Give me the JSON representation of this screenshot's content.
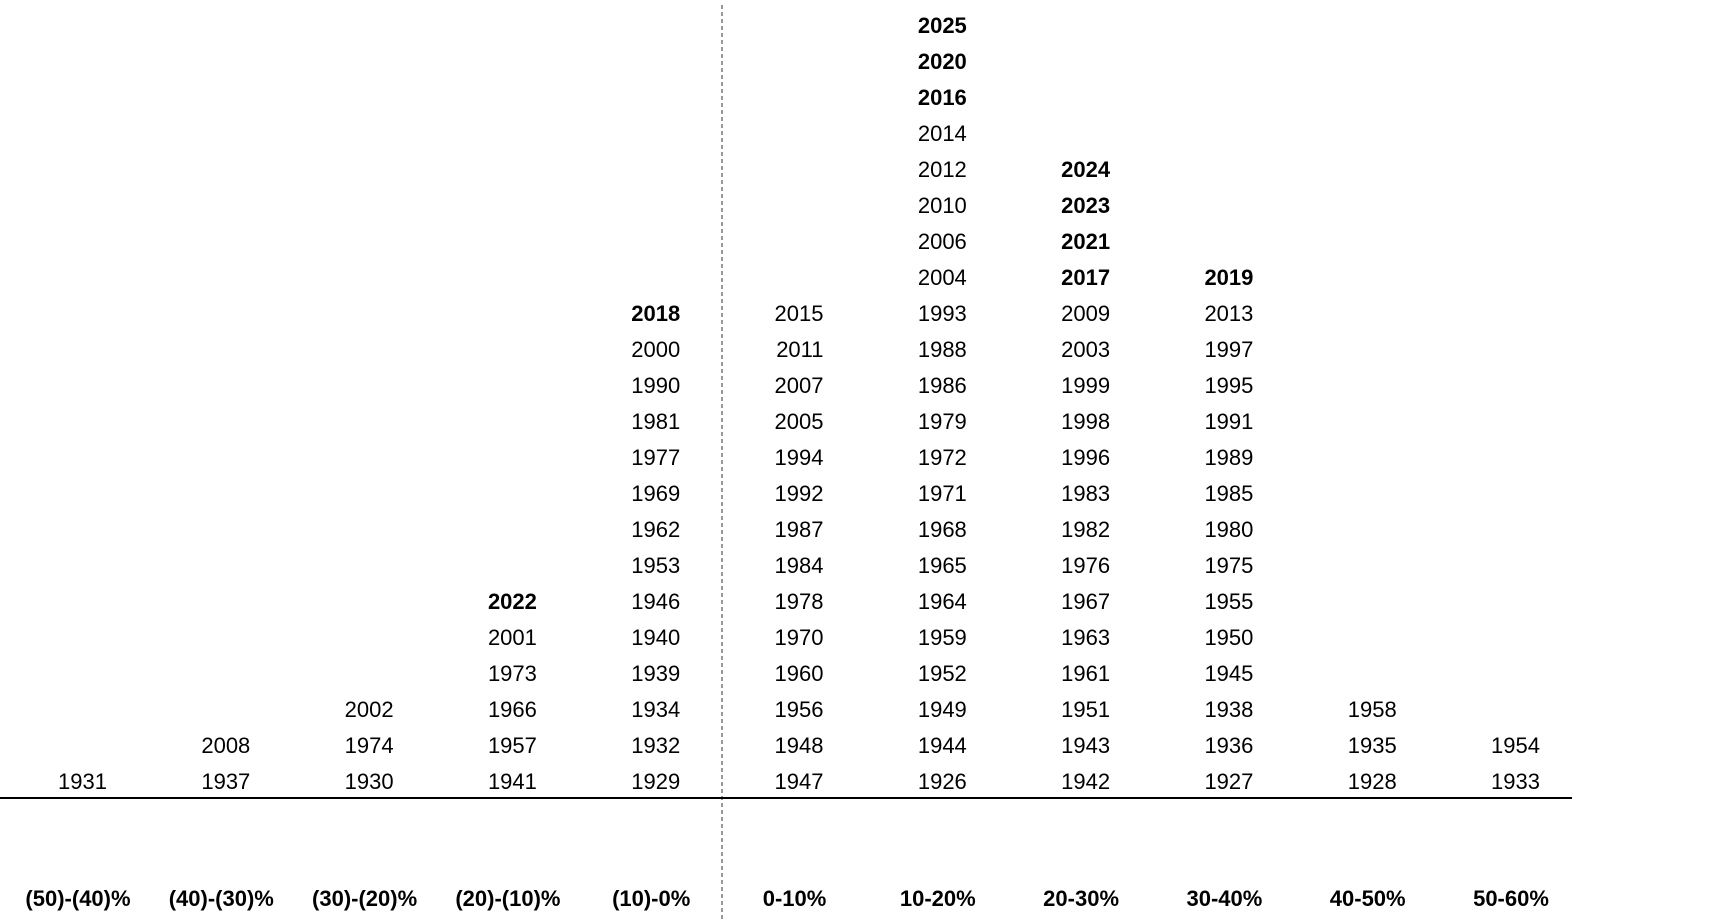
{
  "columns": [
    {
      "label": "(50)-(40)%",
      "years": [
        1931
      ],
      "bold": [
        false
      ]
    },
    {
      "label": "(40)-(30)%",
      "years": [
        1937,
        2008
      ],
      "bold": [
        false,
        false
      ]
    },
    {
      "label": "(30)-(20)%",
      "years": [
        1930,
        1974,
        2002
      ],
      "bold": [
        false,
        false,
        false
      ]
    },
    {
      "label": "(20)-(10)%",
      "years": [
        1941,
        1957,
        1966,
        1973,
        2001,
        2022
      ],
      "bold": [
        false,
        false,
        false,
        false,
        false,
        true
      ]
    },
    {
      "label": "(10)-0%",
      "years": [
        1929,
        1932,
        1934,
        1939,
        1940,
        1946,
        1953,
        1962,
        1969,
        1977,
        1981,
        1990,
        2000,
        2018
      ],
      "bold": [
        false,
        false,
        false,
        false,
        false,
        false,
        false,
        false,
        false,
        false,
        false,
        false,
        false,
        true
      ]
    },
    {
      "label": "0-10%",
      "years": [
        1947,
        1948,
        1956,
        1960,
        1970,
        1978,
        1984,
        1987,
        1992,
        1994,
        2005,
        2007,
        2011,
        2015
      ],
      "bold": [
        false,
        false,
        false,
        false,
        false,
        false,
        false,
        false,
        false,
        false,
        false,
        false,
        false,
        false
      ]
    },
    {
      "label": "10-20%",
      "years": [
        1926,
        1944,
        1949,
        1952,
        1959,
        1964,
        1965,
        1968,
        1971,
        1972,
        1979,
        1986,
        1988,
        1993,
        2004,
        2006,
        2010,
        2012,
        2014,
        2016,
        2020,
        2025
      ],
      "bold": [
        false,
        false,
        false,
        false,
        false,
        false,
        false,
        false,
        false,
        false,
        false,
        false,
        false,
        false,
        false,
        false,
        false,
        false,
        false,
        true,
        true,
        true
      ]
    },
    {
      "label": "20-30%",
      "years": [
        1942,
        1943,
        1951,
        1961,
        1963,
        1967,
        1976,
        1982,
        1983,
        1996,
        1998,
        1999,
        2003,
        2009,
        2017,
        2021,
        2023,
        2024
      ],
      "bold": [
        false,
        false,
        false,
        false,
        false,
        false,
        false,
        false,
        false,
        false,
        false,
        false,
        false,
        false,
        true,
        true,
        true,
        true
      ]
    },
    {
      "label": "30-40%",
      "years": [
        1927,
        1936,
        1938,
        1945,
        1950,
        1955,
        1975,
        1980,
        1985,
        1989,
        1991,
        1995,
        1997,
        2013,
        2019
      ],
      "bold": [
        false,
        false,
        false,
        false,
        false,
        false,
        false,
        false,
        false,
        false,
        false,
        false,
        false,
        false,
        true
      ]
    },
    {
      "label": "40-50%",
      "years": [
        1928,
        1935,
        1958
      ],
      "bold": [
        false,
        false,
        false
      ]
    },
    {
      "label": "50-60%",
      "years": [
        1933,
        1954
      ],
      "bold": [
        false,
        false
      ]
    }
  ]
}
